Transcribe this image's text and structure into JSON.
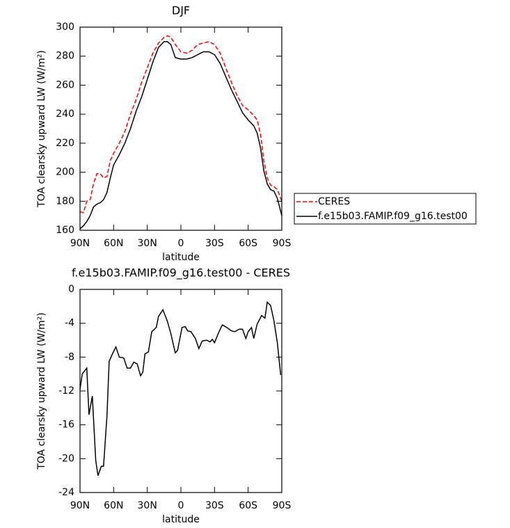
{
  "chart_data": [
    {
      "type": "line",
      "title": "DJF",
      "xlabel": "latitude",
      "ylabel": "TOA clearsky upward LW (W/m²)",
      "x": [
        90,
        87,
        84,
        81,
        78,
        75,
        72,
        69,
        66,
        63,
        60,
        55,
        50,
        45,
        40,
        35,
        30,
        25,
        20,
        15,
        12,
        9,
        5,
        0,
        -5,
        -10,
        -15,
        -20,
        -25,
        -30,
        -35,
        -40,
        -45,
        -50,
        -55,
        -60,
        -65,
        -68,
        -71,
        -74,
        -77,
        -80,
        -83,
        -86,
        -90
      ],
      "series": [
        {
          "name": "CERES",
          "color": "#ff0000",
          "linestyle": "dashed",
          "values": [
            173,
            172,
            180,
            181,
            192,
            199,
            199,
            196,
            197,
            208,
            213,
            220,
            228,
            240,
            250,
            262,
            272,
            282,
            289,
            293,
            294,
            293,
            288,
            283,
            282,
            284,
            288,
            289,
            290,
            288,
            282,
            272,
            262,
            253,
            246,
            243,
            239,
            236,
            226,
            208,
            196,
            191,
            190,
            188,
            180
          ]
        },
        {
          "name": "f.e15b03.FAMIP.f09_g16.test00",
          "color": "#000000",
          "linestyle": "solid",
          "values": [
            161,
            163,
            166,
            170,
            176,
            178,
            179,
            181,
            186,
            196,
            205,
            212,
            220,
            230,
            242,
            252,
            264,
            276,
            286,
            290,
            290,
            288,
            279,
            278,
            278,
            279,
            281,
            283,
            283,
            281,
            275,
            266,
            257,
            249,
            241,
            236,
            232,
            227,
            217,
            201,
            192,
            188,
            187,
            182,
            170
          ]
        }
      ],
      "xlim": [
        90,
        -90
      ],
      "xticks": [
        {
          "value": 90,
          "label": "90N"
        },
        {
          "value": 60,
          "label": "60N"
        },
        {
          "value": 30,
          "label": "30N"
        },
        0,
        {
          "value": -30,
          "label": "30S"
        },
        {
          "value": -60,
          "label": "60S"
        },
        {
          "value": -90,
          "label": "90S"
        }
      ],
      "ylim": [
        160,
        300
      ],
      "yticks": [
        160,
        180,
        200,
        220,
        240,
        260,
        280,
        300
      ],
      "legend": "right"
    },
    {
      "type": "line",
      "title": "f.e15b03.FAMIP.f09_g16.test00 - CERES",
      "xlabel": "latitude",
      "ylabel": "TOA clearsky upward LW (W/m²)",
      "x": [
        90,
        88,
        84,
        82,
        79,
        76,
        74,
        71,
        69,
        66,
        64,
        61,
        58,
        55,
        51,
        48,
        45,
        42,
        39,
        36,
        34,
        32,
        29,
        26,
        22,
        20,
        16,
        12,
        9,
        5,
        3,
        -1,
        -4,
        -6,
        -9,
        -13,
        -16,
        -19,
        -23,
        -26,
        -28,
        -30,
        -34,
        -37,
        -41,
        -45,
        -48,
        -52,
        -55,
        -58,
        -60,
        -63,
        -65,
        -68,
        -72,
        -75,
        -77,
        -80,
        -83,
        -86,
        -89
      ],
      "values": [
        -11.8,
        -10,
        -9.3,
        -14.8,
        -12.6,
        -20.2,
        -22,
        -20.9,
        -20.9,
        -15,
        -8.5,
        -7.6,
        -6.8,
        -8,
        -8.1,
        -9.3,
        -9.3,
        -8.6,
        -8.8,
        -10.2,
        -9.8,
        -7.6,
        -7.4,
        -5,
        -4.5,
        -3.2,
        -2.4,
        -3.8,
        -5.2,
        -7.5,
        -7.2,
        -4.5,
        -4.4,
        -4.9,
        -5,
        -5.8,
        -7,
        -6.1,
        -6,
        -6.2,
        -5.9,
        -6.3,
        -5,
        -4.2,
        -4.5,
        -4.9,
        -5,
        -4.7,
        -4.7,
        -5.8,
        -5,
        -4.5,
        -5.8,
        -4.1,
        -3.1,
        -3.4,
        -1.5,
        -1.9,
        -3.7,
        -6.3,
        -10.1
      ],
      "color": "#000000",
      "xlim": [
        90,
        -90
      ],
      "xticks": [
        {
          "value": 90,
          "label": "90N"
        },
        {
          "value": 60,
          "label": "60N"
        },
        {
          "value": 30,
          "label": "30N"
        },
        0,
        {
          "value": -30,
          "label": "30S"
        },
        {
          "value": -60,
          "label": "60S"
        },
        {
          "value": -90,
          "label": "90S"
        }
      ],
      "ylim": [
        -24,
        0
      ],
      "yticks": [
        -24,
        -20,
        -16,
        -12,
        -8,
        -4,
        0
      ]
    }
  ]
}
